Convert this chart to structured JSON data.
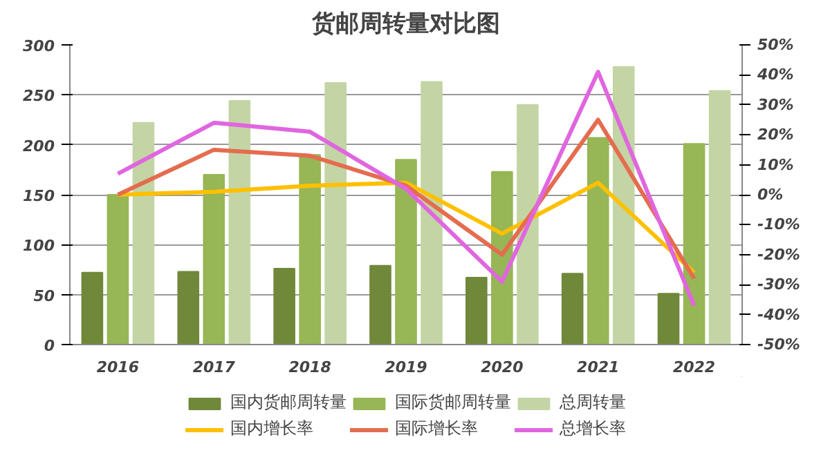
{
  "chart_data": {
    "type": "bar",
    "title": "货邮周转量对比图",
    "categories": [
      "2016",
      "2017",
      "2018",
      "2019",
      "2020",
      "2021",
      "2022"
    ],
    "series": [
      {
        "name": "国内货邮周转量",
        "color": "#70883a",
        "values": [
          72,
          73,
          76,
          79,
          67,
          71,
          51
        ]
      },
      {
        "name": "国际货邮周转量",
        "color": "#97b655",
        "values": [
          150,
          170,
          190,
          185,
          173,
          207,
          201
        ]
      },
      {
        "name": "总周转量",
        "color": "#c3d5a4",
        "values": [
          222,
          244,
          262,
          263,
          240,
          278,
          254
        ]
      },
      {
        "name": "国内增长率",
        "type": "line",
        "axis": "y2",
        "color": "#ffc000",
        "values": [
          0,
          1,
          3,
          4,
          -13,
          4,
          -26
        ]
      },
      {
        "name": "国际增长率",
        "type": "line",
        "axis": "y2",
        "color": "#e46c4f",
        "values": [
          0,
          15,
          13,
          3,
          -20,
          25,
          -28
        ]
      },
      {
        "name": "总增长率",
        "type": "line",
        "axis": "y2",
        "color": "#e066e0",
        "values": [
          7,
          24,
          21,
          2,
          -29,
          41,
          -37
        ]
      }
    ],
    "ylim": [
      0,
      300
    ],
    "yticks": [
      0,
      50,
      100,
      150,
      200,
      250,
      300
    ],
    "y2lim": [
      -50,
      50
    ],
    "y2ticks": [
      {
        "value": -50,
        "label": "-50%"
      },
      {
        "value": -40,
        "label": "-40%"
      },
      {
        "value": -30,
        "label": "-30%"
      },
      {
        "value": -20,
        "label": "-20%"
      },
      {
        "value": -10,
        "label": "-10%"
      },
      {
        "value": 0,
        "label": "0%"
      },
      {
        "value": 10,
        "label": "10%"
      },
      {
        "value": 20,
        "label": "20%"
      },
      {
        "value": 30,
        "label": "30%"
      },
      {
        "value": 40,
        "label": "40%"
      },
      {
        "value": 50,
        "label": "50%"
      }
    ],
    "grid": "y",
    "legend": "bottom",
    "line_style": "solid"
  }
}
